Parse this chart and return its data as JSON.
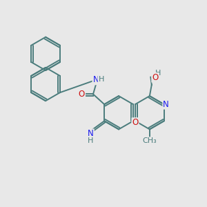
{
  "background_color": "#e8e8e8",
  "bond_color": "#4a7c7c",
  "bond_width": 1.4,
  "atom_colors": {
    "C": "#4a7c7c",
    "N": "#1a1aee",
    "O": "#cc1111",
    "H": "#4a7c7c"
  },
  "font_size": 8.5,
  "fig_size": [
    3.0,
    3.0
  ],
  "dpi": 100
}
